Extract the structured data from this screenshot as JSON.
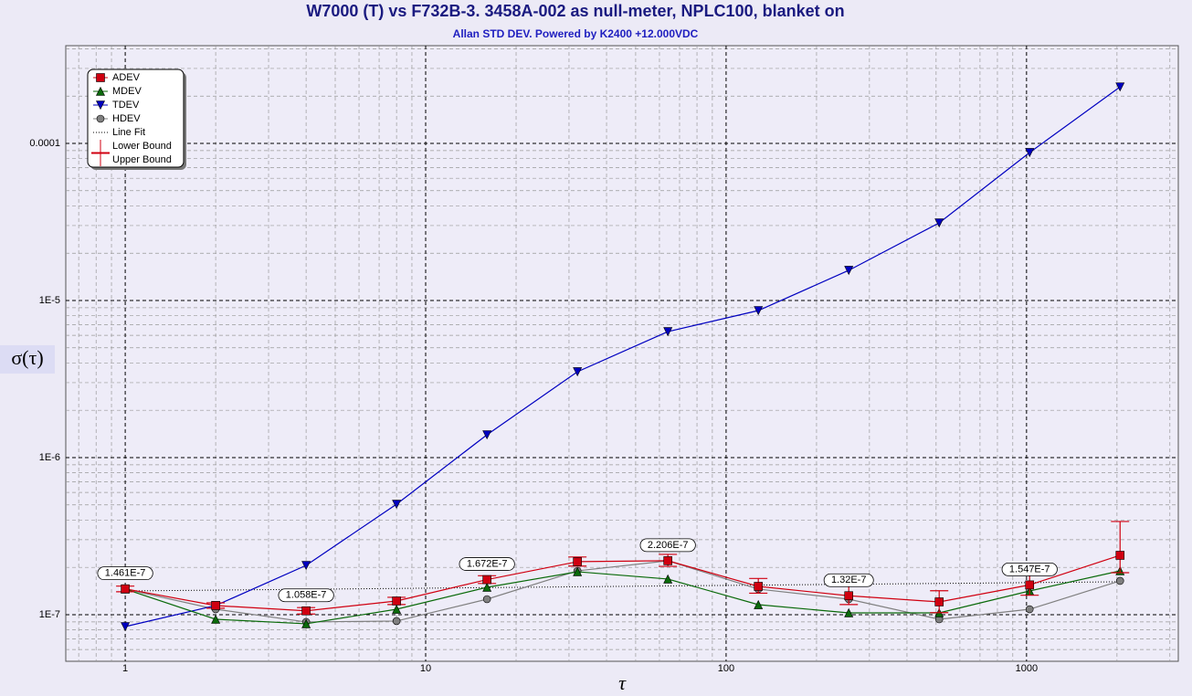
{
  "chart_data": {
    "type": "line",
    "title": "W7000 (T) vs F732B-3. 3458A-002 as null-meter, NPLC100, blanket on",
    "subtitle": "Allan STD DEV. Powered by K2400 +12.000VDC",
    "x_label": "τ",
    "y_label": "σ(τ)",
    "x_log": true,
    "y_log": true,
    "grid": true,
    "minor_grid": true,
    "legend": "upper left",
    "xlim": [
      0.634,
      3200
    ],
    "ylim": [
      5.05e-08,
      0.000419
    ],
    "xticks": [
      1,
      10,
      100,
      1000
    ],
    "yticks": [
      {
        "value": 1e-07,
        "label": "1E-7"
      },
      {
        "value": 1e-06,
        "label": "1E-6"
      },
      {
        "value": 1e-05,
        "label": "1E-5"
      },
      0.0001
    ],
    "x": [
      1,
      2,
      4,
      8,
      16,
      32,
      64,
      128,
      256,
      512,
      1024,
      2048
    ],
    "series": [
      {
        "name": "ADEV",
        "color": "#d00010",
        "marker": "square",
        "values": [
          1.461e-07,
          1.143e-07,
          1.058e-07,
          1.222e-07,
          1.672e-07,
          2.175e-07,
          2.206e-07,
          1.514e-07,
          1.32e-07,
          1.206e-07,
          1.547e-07,
          2.387e-07
        ],
        "value_labels": [
          "1.461E-7",
          null,
          "1.058E-7",
          null,
          "1.672E-7",
          null,
          "2.206E-7",
          null,
          "1.32E-7",
          null,
          "1.547E-7",
          null
        ]
      },
      {
        "name": "MDEV",
        "color": "#0a6a0a",
        "marker": "triangle-up",
        "values": [
          1.455e-07,
          9.35e-08,
          8.75e-08,
          1.083e-07,
          1.494e-07,
          1.876e-07,
          1.686e-07,
          1.158e-07,
          1.027e-07,
          1.027e-07,
          1.416e-07,
          1.901e-07
        ]
      },
      {
        "name": "TDEV",
        "color": "#0000c0",
        "marker": "triangle-down",
        "values": [
          8.4e-08,
          1.143e-07,
          2.06e-07,
          5.05e-07,
          1.397e-06,
          3.52e-06,
          6.34e-06,
          8.63e-06,
          1.556e-05,
          3.12e-05,
          8.75e-05,
          0.000229
        ]
      },
      {
        "name": "HDEV",
        "color": "#808080",
        "marker": "circle",
        "values": [
          1.455e-07,
          1.083e-07,
          8.99e-08,
          9.11e-08,
          1.255e-07,
          1.901e-07,
          2.203e-07,
          1.455e-07,
          1.255e-07,
          9.35e-08,
          1.083e-07,
          1.641e-07
        ]
      }
    ],
    "line_fit": {
      "name": "Line Fit",
      "color": "#000000",
      "x": [
        1,
        2048
      ],
      "values": [
        1.416e-07,
        1.62e-07
      ]
    },
    "error_bars": {
      "series": 0,
      "color": "#d00010",
      "names": [
        "Lower Bound",
        "Upper Bound"
      ],
      "lower": [
        1.4e-07,
        1.1e-07,
        1.01e-07,
        1.16e-07,
        1.58e-07,
        2.04e-07,
        2.03e-07,
        1.37e-07,
        1.16e-07,
        1.03e-07,
        1.33e-07,
        1.85e-07
      ],
      "upper": [
        1.52e-07,
        1.19e-07,
        1.11e-07,
        1.29e-07,
        1.77e-07,
        2.33e-07,
        2.42e-07,
        1.7e-07,
        1.53e-07,
        1.42e-07,
        1.78e-07,
        3.92e-07
      ]
    }
  }
}
